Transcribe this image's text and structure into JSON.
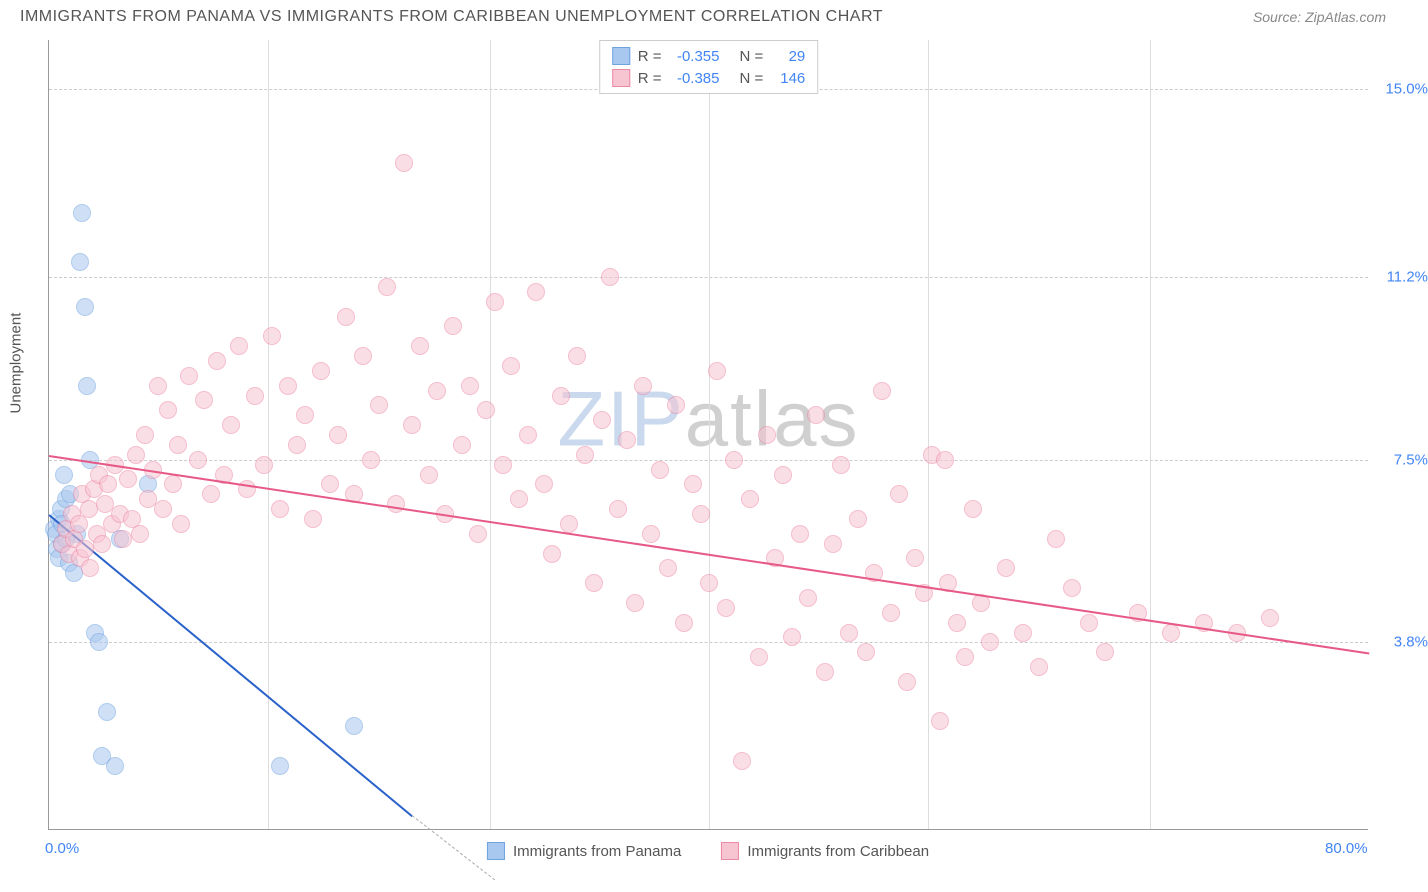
{
  "title": "IMMIGRANTS FROM PANAMA VS IMMIGRANTS FROM CARIBBEAN UNEMPLOYMENT CORRELATION CHART",
  "source": "Source: ZipAtlas.com",
  "watermark": {
    "part1": "ZIP",
    "part2": "atlas"
  },
  "chart": {
    "type": "scatter",
    "y_axis_title": "Unemployment",
    "background_color": "#ffffff",
    "grid_color": "#cccccc",
    "xlim": [
      0,
      80
    ],
    "ylim": [
      0,
      16
    ],
    "x_ticks": [
      {
        "value": 0,
        "label": "0.0%"
      },
      {
        "value": 80,
        "label": "80.0%"
      }
    ],
    "x_gridlines": [
      13.3,
      26.7,
      40,
      53.3,
      66.7
    ],
    "y_ticks": [
      {
        "value": 3.8,
        "label": "3.8%"
      },
      {
        "value": 7.5,
        "label": "7.5%"
      },
      {
        "value": 11.2,
        "label": "11.2%"
      },
      {
        "value": 15.0,
        "label": "15.0%"
      }
    ],
    "point_radius": 9,
    "point_opacity": 0.55,
    "series": [
      {
        "name": "Immigrants from Panama",
        "fill_color": "#a8c8f0",
        "stroke_color": "#6fa3e0",
        "trend_color": "#2a62c9",
        "stats": {
          "R": "-0.355",
          "N": "29"
        },
        "trend": {
          "x1": 0,
          "y1": 6.4,
          "x2": 22,
          "y2": 0.3
        },
        "trend_dash": {
          "x1": 22,
          "y1": 0.3,
          "x2": 27,
          "y2": -1.0
        },
        "points": [
          [
            0.3,
            6.1
          ],
          [
            0.4,
            6.0
          ],
          [
            0.5,
            5.7
          ],
          [
            0.6,
            6.3
          ],
          [
            0.6,
            5.5
          ],
          [
            0.7,
            6.5
          ],
          [
            0.8,
            5.8
          ],
          [
            0.8,
            6.2
          ],
          [
            0.9,
            7.2
          ],
          [
            1.0,
            5.9
          ],
          [
            1.0,
            6.7
          ],
          [
            1.2,
            5.4
          ],
          [
            1.3,
            6.8
          ],
          [
            1.5,
            5.2
          ],
          [
            1.7,
            6.0
          ],
          [
            1.9,
            11.5
          ],
          [
            2.0,
            12.5
          ],
          [
            2.2,
            10.6
          ],
          [
            2.3,
            9.0
          ],
          [
            2.5,
            7.5
          ],
          [
            2.8,
            4.0
          ],
          [
            3.0,
            3.8
          ],
          [
            3.2,
            1.5
          ],
          [
            3.5,
            2.4
          ],
          [
            4.0,
            1.3
          ],
          [
            4.3,
            5.9
          ],
          [
            6.0,
            7.0
          ],
          [
            14.0,
            1.3
          ],
          [
            18.5,
            2.1
          ]
        ]
      },
      {
        "name": "Immigrants from Caribbean",
        "fill_color": "#f7c4d2",
        "stroke_color": "#ec89a5",
        "trend_color": "#e75a87",
        "stats": {
          "R": "-0.385",
          "N": "146"
        },
        "trend": {
          "x1": 0,
          "y1": 7.6,
          "x2": 80,
          "y2": 3.6
        },
        "points": [
          [
            0.8,
            5.8
          ],
          [
            1.0,
            6.1
          ],
          [
            1.2,
            5.6
          ],
          [
            1.4,
            6.4
          ],
          [
            1.5,
            5.9
          ],
          [
            1.8,
            6.2
          ],
          [
            1.9,
            5.5
          ],
          [
            2.0,
            6.8
          ],
          [
            2.2,
            5.7
          ],
          [
            2.4,
            6.5
          ],
          [
            2.5,
            5.3
          ],
          [
            2.7,
            6.9
          ],
          [
            2.9,
            6.0
          ],
          [
            3.0,
            7.2
          ],
          [
            3.2,
            5.8
          ],
          [
            3.4,
            6.6
          ],
          [
            3.6,
            7.0
          ],
          [
            3.8,
            6.2
          ],
          [
            4.0,
            7.4
          ],
          [
            4.3,
            6.4
          ],
          [
            4.5,
            5.9
          ],
          [
            4.8,
            7.1
          ],
          [
            5.0,
            6.3
          ],
          [
            5.3,
            7.6
          ],
          [
            5.5,
            6.0
          ],
          [
            5.8,
            8.0
          ],
          [
            6.0,
            6.7
          ],
          [
            6.3,
            7.3
          ],
          [
            6.6,
            9.0
          ],
          [
            6.9,
            6.5
          ],
          [
            7.2,
            8.5
          ],
          [
            7.5,
            7.0
          ],
          [
            7.8,
            7.8
          ],
          [
            8.0,
            6.2
          ],
          [
            8.5,
            9.2
          ],
          [
            9.0,
            7.5
          ],
          [
            9.4,
            8.7
          ],
          [
            9.8,
            6.8
          ],
          [
            10.2,
            9.5
          ],
          [
            10.6,
            7.2
          ],
          [
            11.0,
            8.2
          ],
          [
            11.5,
            9.8
          ],
          [
            12.0,
            6.9
          ],
          [
            12.5,
            8.8
          ],
          [
            13.0,
            7.4
          ],
          [
            13.5,
            10.0
          ],
          [
            14.0,
            6.5
          ],
          [
            14.5,
            9.0
          ],
          [
            15.0,
            7.8
          ],
          [
            15.5,
            8.4
          ],
          [
            16.0,
            6.3
          ],
          [
            16.5,
            9.3
          ],
          [
            17.0,
            7.0
          ],
          [
            17.5,
            8.0
          ],
          [
            18.0,
            10.4
          ],
          [
            18.5,
            6.8
          ],
          [
            19.0,
            9.6
          ],
          [
            19.5,
            7.5
          ],
          [
            20.0,
            8.6
          ],
          [
            20.5,
            11.0
          ],
          [
            21.0,
            6.6
          ],
          [
            21.5,
            13.5
          ],
          [
            22.0,
            8.2
          ],
          [
            22.5,
            9.8
          ],
          [
            23.0,
            7.2
          ],
          [
            23.5,
            8.9
          ],
          [
            24.0,
            6.4
          ],
          [
            24.5,
            10.2
          ],
          [
            25.0,
            7.8
          ],
          [
            25.5,
            9.0
          ],
          [
            26.0,
            6.0
          ],
          [
            26.5,
            8.5
          ],
          [
            27.0,
            10.7
          ],
          [
            27.5,
            7.4
          ],
          [
            28.0,
            9.4
          ],
          [
            28.5,
            6.7
          ],
          [
            29.0,
            8.0
          ],
          [
            29.5,
            10.9
          ],
          [
            30.0,
            7.0
          ],
          [
            30.5,
            5.6
          ],
          [
            31.0,
            8.8
          ],
          [
            31.5,
            6.2
          ],
          [
            32.0,
            9.6
          ],
          [
            32.5,
            7.6
          ],
          [
            33.0,
            5.0
          ],
          [
            33.5,
            8.3
          ],
          [
            34.0,
            11.2
          ],
          [
            34.5,
            6.5
          ],
          [
            35.0,
            7.9
          ],
          [
            35.5,
            4.6
          ],
          [
            36.0,
            9.0
          ],
          [
            36.5,
            6.0
          ],
          [
            37.0,
            7.3
          ],
          [
            37.5,
            5.3
          ],
          [
            38.0,
            8.6
          ],
          [
            38.5,
            4.2
          ],
          [
            39.0,
            7.0
          ],
          [
            39.5,
            6.4
          ],
          [
            40.0,
            5.0
          ],
          [
            40.5,
            9.3
          ],
          [
            41.0,
            4.5
          ],
          [
            41.5,
            7.5
          ],
          [
            42.0,
            1.4
          ],
          [
            42.5,
            6.7
          ],
          [
            43.0,
            3.5
          ],
          [
            43.5,
            8.0
          ],
          [
            44.0,
            5.5
          ],
          [
            44.5,
            7.2
          ],
          [
            45.0,
            3.9
          ],
          [
            45.5,
            6.0
          ],
          [
            46.0,
            4.7
          ],
          [
            46.5,
            8.4
          ],
          [
            47.0,
            3.2
          ],
          [
            47.5,
            5.8
          ],
          [
            48.0,
            7.4
          ],
          [
            48.5,
            4.0
          ],
          [
            49.0,
            6.3
          ],
          [
            49.5,
            3.6
          ],
          [
            50.0,
            5.2
          ],
          [
            50.5,
            8.9
          ],
          [
            51.0,
            4.4
          ],
          [
            51.5,
            6.8
          ],
          [
            52.0,
            3.0
          ],
          [
            52.5,
            5.5
          ],
          [
            53.0,
            4.8
          ],
          [
            53.5,
            7.6
          ],
          [
            54.0,
            2.2
          ],
          [
            54.3,
            7.5
          ],
          [
            54.5,
            5.0
          ],
          [
            55.0,
            4.2
          ],
          [
            55.5,
            3.5
          ],
          [
            56.0,
            6.5
          ],
          [
            56.5,
            4.6
          ],
          [
            57.0,
            3.8
          ],
          [
            58.0,
            5.3
          ],
          [
            59.0,
            4.0
          ],
          [
            60.0,
            3.3
          ],
          [
            61.0,
            5.9
          ],
          [
            62.0,
            4.9
          ],
          [
            63.0,
            4.2
          ],
          [
            64.0,
            3.6
          ],
          [
            66.0,
            4.4
          ],
          [
            68.0,
            4.0
          ],
          [
            70.0,
            4.2
          ],
          [
            72.0,
            4.0
          ],
          [
            74.0,
            4.3
          ]
        ]
      }
    ]
  }
}
